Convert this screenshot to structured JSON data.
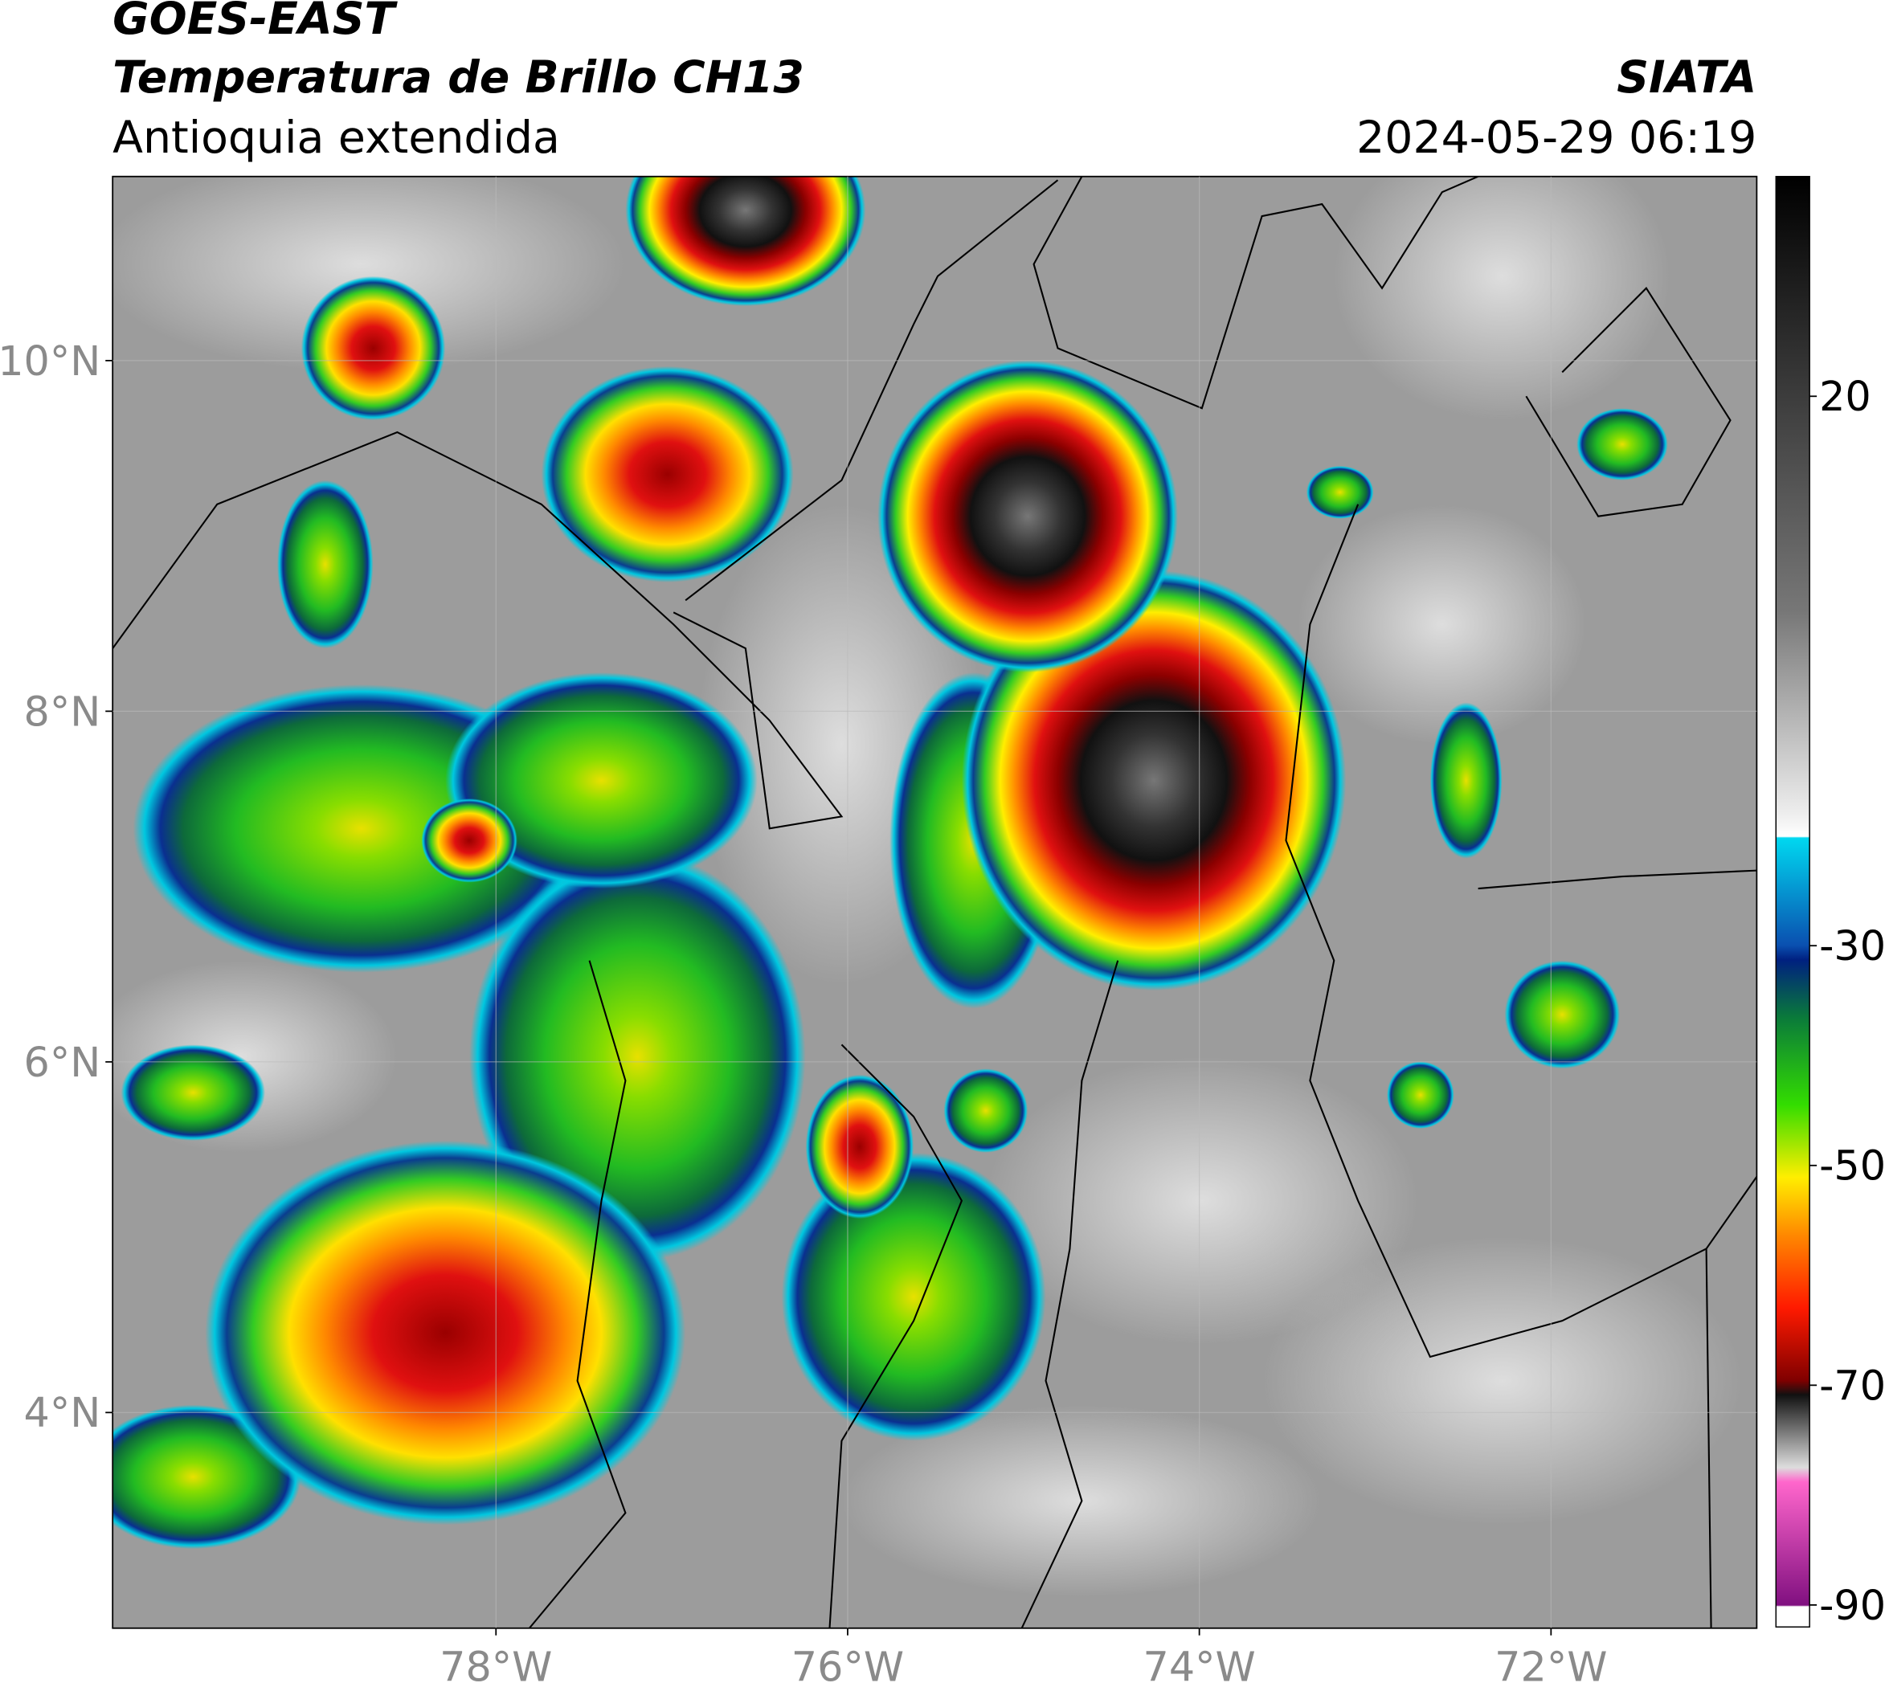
{
  "header": {
    "source": "GOES-EAST",
    "product": "Temperatura de Brillo CH13",
    "region": "Antioquia extendida",
    "agency": "SIATA",
    "datetime": "2024-05-29 06:19"
  },
  "map": {
    "xlim": [
      -80.18,
      -70.83
    ],
    "ylim": [
      2.77,
      11.05
    ],
    "xticks": [
      {
        "value": -78,
        "label": "78°W"
      },
      {
        "value": -76,
        "label": "76°W"
      },
      {
        "value": -74,
        "label": "74°W"
      },
      {
        "value": -72,
        "label": "72°W"
      }
    ],
    "yticks": [
      {
        "value": 4,
        "label": "4°N"
      },
      {
        "value": 6,
        "label": "6°N"
      },
      {
        "value": 8,
        "label": "8°N"
      },
      {
        "value": 10,
        "label": "10°N"
      }
    ],
    "grid": true
  },
  "colorbar": {
    "lim": [
      -92,
      40
    ],
    "ticks": [
      20,
      -30,
      -50,
      -70,
      -90
    ]
  }
}
